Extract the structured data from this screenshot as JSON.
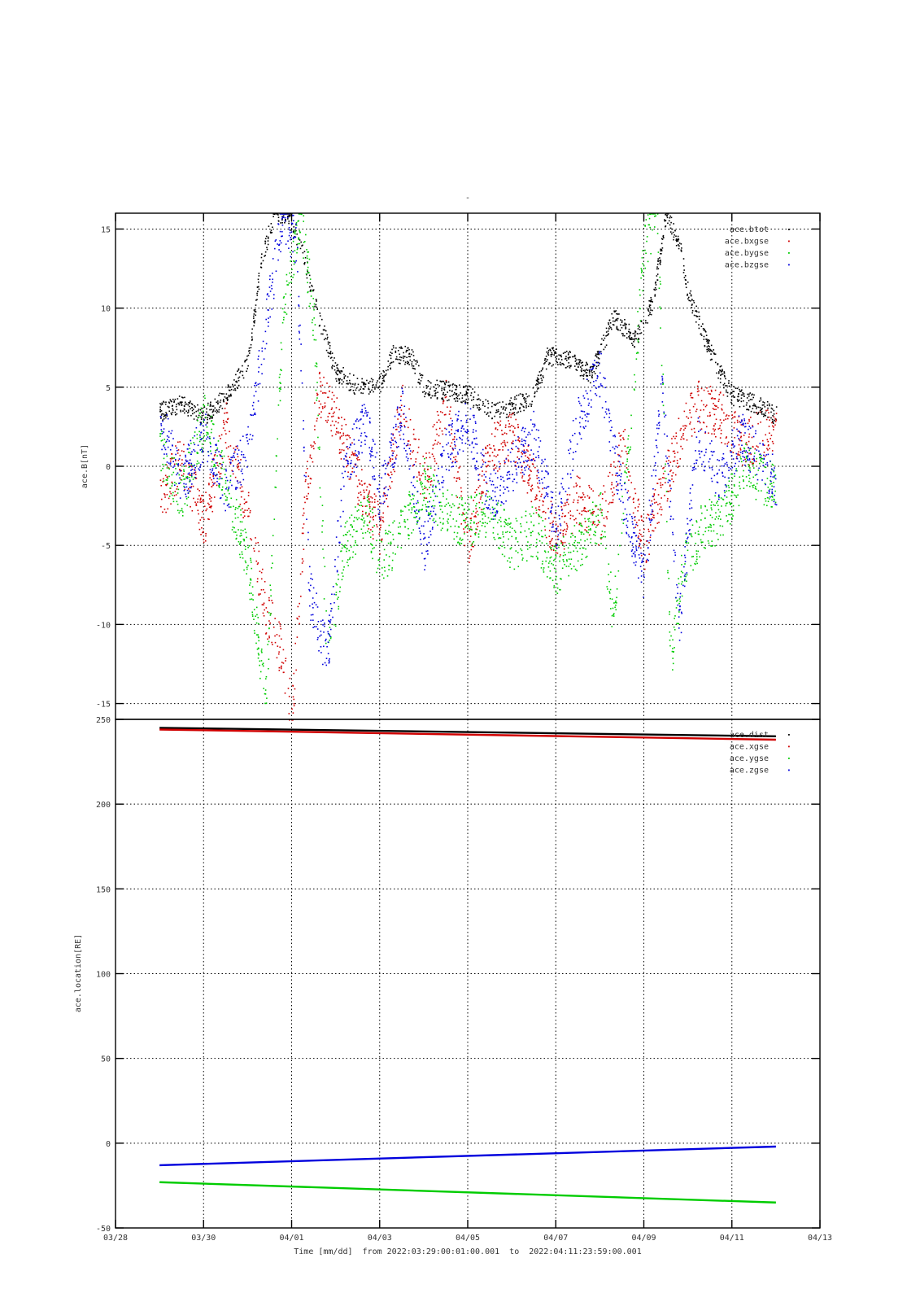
{
  "chart_data": [
    {
      "type": "scatter",
      "title": "-",
      "ylabel": "ace.B[nT]",
      "ylim": [
        -16,
        16
      ],
      "yticks": [
        "15",
        "10",
        "5",
        "0",
        "-5",
        "-10",
        "-15"
      ],
      "grid": true,
      "legend_position": "top-right",
      "series": [
        {
          "name": "ace.btot",
          "color": "#000000",
          "points": [
            [
              0.0,
              3.5
            ],
            [
              0.5,
              4.0
            ],
            [
              1.0,
              3.2
            ],
            [
              1.5,
              4.5
            ],
            [
              2.0,
              6.5
            ],
            [
              2.3,
              13.0
            ],
            [
              2.6,
              16.0
            ],
            [
              2.9,
              16.0
            ],
            [
              3.2,
              14.0
            ],
            [
              3.6,
              9.5
            ],
            [
              4.0,
              6.0
            ],
            [
              4.5,
              5.0
            ],
            [
              5.0,
              5.2
            ],
            [
              5.3,
              7.2
            ],
            [
              5.7,
              7.0
            ],
            [
              6.0,
              5.0
            ],
            [
              6.5,
              4.8
            ],
            [
              7.0,
              4.6
            ],
            [
              7.5,
              3.5
            ],
            [
              8.0,
              3.8
            ],
            [
              8.5,
              4.5
            ],
            [
              8.8,
              7.0
            ],
            [
              9.3,
              6.8
            ],
            [
              9.8,
              5.8
            ],
            [
              10.3,
              9.5
            ],
            [
              10.8,
              8.0
            ],
            [
              11.2,
              10.5
            ],
            [
              11.5,
              16.0
            ],
            [
              11.8,
              14.0
            ],
            [
              12.0,
              11.0
            ],
            [
              12.4,
              8.0
            ],
            [
              12.7,
              6.0
            ],
            [
              13.0,
              4.5
            ],
            [
              13.5,
              4.0
            ],
            [
              14.0,
              3.2
            ]
          ]
        },
        {
          "name": "ace.bxgse",
          "color": "#d00000",
          "points": [
            [
              0.0,
              -2.0
            ],
            [
              0.5,
              0.5
            ],
            [
              1.0,
              -3.5
            ],
            [
              1.5,
              2.5
            ],
            [
              2.0,
              -3.0
            ],
            [
              2.4,
              -9.0
            ],
            [
              2.8,
              -12.0
            ],
            [
              3.0,
              -16.0
            ],
            [
              3.3,
              -2.0
            ],
            [
              3.6,
              4.5
            ],
            [
              4.0,
              3.0
            ],
            [
              4.5,
              -1.0
            ],
            [
              5.0,
              -4.0
            ],
            [
              5.5,
              4.0
            ],
            [
              6.0,
              -1.0
            ],
            [
              6.5,
              4.0
            ],
            [
              7.0,
              -5.0
            ],
            [
              7.5,
              1.0
            ],
            [
              8.0,
              2.0
            ],
            [
              8.5,
              -1.0
            ],
            [
              9.0,
              -4.5
            ],
            [
              9.5,
              -2.0
            ],
            [
              10.0,
              -3.5
            ],
            [
              10.5,
              1.5
            ],
            [
              11.0,
              -5.0
            ],
            [
              11.3,
              -2.5
            ],
            [
              11.7,
              1.0
            ],
            [
              12.2,
              4.0
            ],
            [
              12.8,
              3.0
            ],
            [
              13.3,
              1.5
            ],
            [
              14.0,
              2.5
            ]
          ]
        },
        {
          "name": "ace.bygse",
          "color": "#00cc00",
          "points": [
            [
              0.0,
              1.0
            ],
            [
              0.5,
              -2.0
            ],
            [
              1.0,
              3.0
            ],
            [
              1.5,
              -1.0
            ],
            [
              2.0,
              -6.0
            ],
            [
              2.4,
              -15.0
            ],
            [
              2.8,
              10.0
            ],
            [
              3.2,
              16.0
            ],
            [
              3.5,
              9.0
            ],
            [
              3.8,
              -12.0
            ],
            [
              4.2,
              -5.0
            ],
            [
              4.7,
              -3.0
            ],
            [
              5.0,
              -6.0
            ],
            [
              5.5,
              -4.0
            ],
            [
              6.0,
              -1.0
            ],
            [
              6.5,
              -3.0
            ],
            [
              7.0,
              -3.5
            ],
            [
              7.5,
              -3.0
            ],
            [
              8.0,
              -5.0
            ],
            [
              8.5,
              -4.0
            ],
            [
              9.0,
              -6.5
            ],
            [
              9.5,
              -5.0
            ],
            [
              10.0,
              -3.0
            ],
            [
              10.3,
              -9.5
            ],
            [
              10.7,
              3.0
            ],
            [
              11.0,
              14.0
            ],
            [
              11.3,
              16.0
            ],
            [
              11.6,
              -12.0
            ],
            [
              11.9,
              -6.0
            ],
            [
              12.3,
              -4.0
            ],
            [
              12.8,
              -3.0
            ],
            [
              13.3,
              0.0
            ],
            [
              14.0,
              -1.5
            ]
          ]
        },
        {
          "name": "ace.bzgse",
          "color": "#0000dd",
          "points": [
            [
              0.0,
              3.0
            ],
            [
              0.5,
              -1.0
            ],
            [
              1.0,
              2.0
            ],
            [
              1.5,
              -1.5
            ],
            [
              2.0,
              1.0
            ],
            [
              2.4,
              9.0
            ],
            [
              2.8,
              16.0
            ],
            [
              3.1,
              14.0
            ],
            [
              3.4,
              -8.0
            ],
            [
              3.8,
              -12.0
            ],
            [
              4.2,
              0.0
            ],
            [
              4.7,
              3.0
            ],
            [
              5.0,
              -2.0
            ],
            [
              5.5,
              3.5
            ],
            [
              6.0,
              -5.0
            ],
            [
              6.5,
              1.0
            ],
            [
              7.0,
              3.0
            ],
            [
              7.5,
              -2.0
            ],
            [
              8.0,
              0.0
            ],
            [
              8.5,
              2.0
            ],
            [
              9.0,
              -4.0
            ],
            [
              9.5,
              3.0
            ],
            [
              10.0,
              6.0
            ],
            [
              10.5,
              -2.0
            ],
            [
              11.0,
              -7.0
            ],
            [
              11.4,
              5.0
            ],
            [
              11.8,
              -10.0
            ],
            [
              12.2,
              2.0
            ],
            [
              12.7,
              -1.0
            ],
            [
              13.2,
              2.0
            ],
            [
              14.0,
              -1.0
            ]
          ]
        }
      ]
    },
    {
      "type": "line",
      "ylabel": "ace.location[RE]",
      "ylim": [
        -50,
        250
      ],
      "yticks": [
        "250",
        "200",
        "150",
        "100",
        "50",
        "0",
        "-50"
      ],
      "x_from": "2022:03:29:00:01:00.001",
      "x_to": "2022:04:11:23:59:00.001",
      "grid": true,
      "legend_position": "top-right",
      "series": [
        {
          "name": "ace.dist",
          "color": "#000000",
          "points": [
            [
              0,
              245
            ],
            [
              14,
              240
            ]
          ]
        },
        {
          "name": "ace.xgse",
          "color": "#d00000",
          "points": [
            [
              0,
              244
            ],
            [
              14,
              238
            ]
          ]
        },
        {
          "name": "ace.ygse",
          "color": "#00cc00",
          "points": [
            [
              0,
              -23
            ],
            [
              14,
              -35
            ]
          ]
        },
        {
          "name": "ace.zgse",
          "color": "#0000dd",
          "points": [
            [
              0,
              -13
            ],
            [
              14,
              -2
            ]
          ]
        }
      ]
    }
  ],
  "x_axis": {
    "label": "Time [mm/dd]  from 2022:03:29:00:01:00.001  to  2022:04:11:23:59:00.001",
    "ticks": [
      "03/28",
      "03/30",
      "04/01",
      "04/03",
      "04/05",
      "04/07",
      "04/09",
      "04/11",
      "04/13"
    ],
    "range_days_from_0329": [
      -1,
      15
    ]
  },
  "ticks_ui": {
    "x_values": [
      -1,
      1,
      3,
      5,
      7,
      9,
      11,
      13,
      15
    ],
    "top_values": [
      15,
      10,
      5,
      0,
      -5,
      -10,
      -15
    ],
    "bottom_values": [
      250,
      200,
      150,
      100,
      50,
      0,
      -50
    ]
  }
}
